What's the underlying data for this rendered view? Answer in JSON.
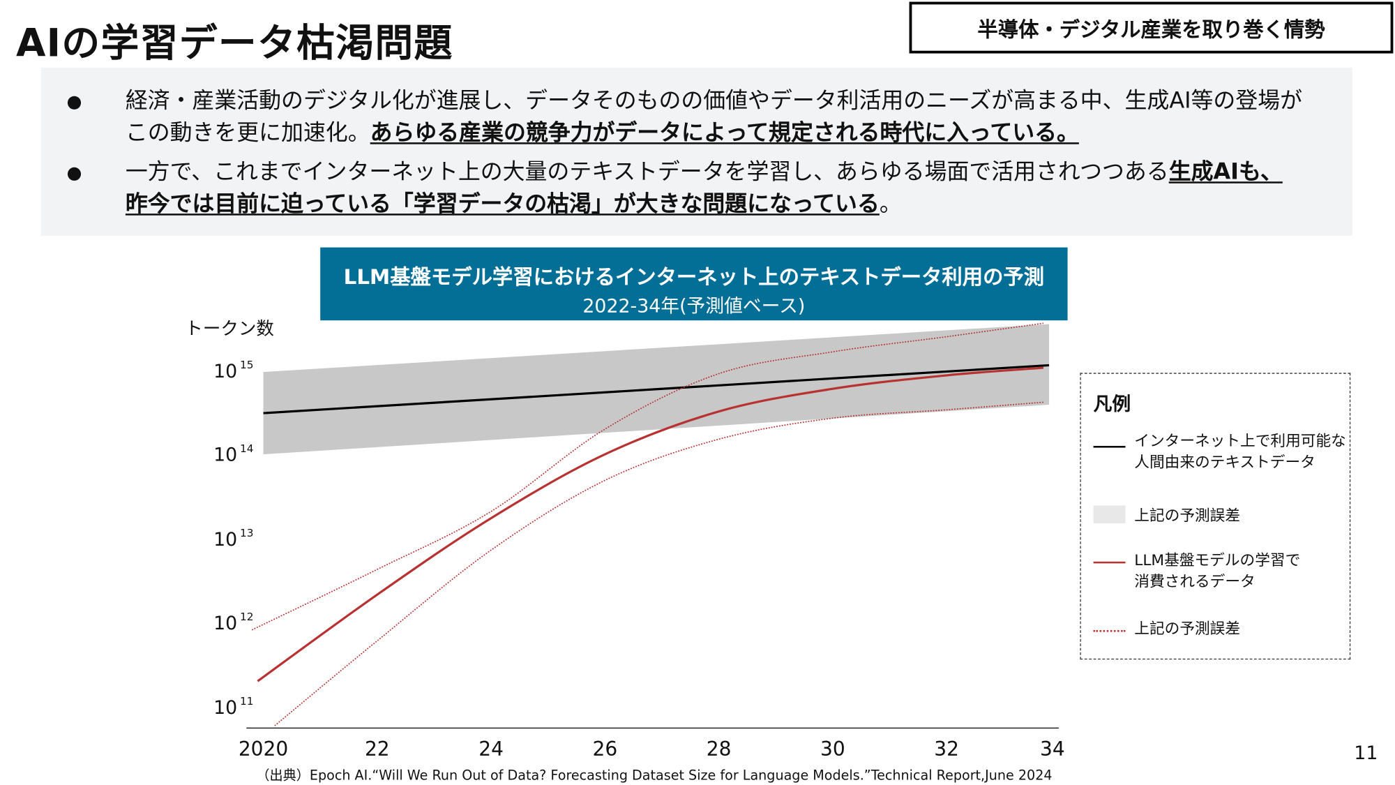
{
  "page": {
    "title": "AIの学習データ枯渇問題",
    "section_tag": "半導体・デジタル産業を取り巻く情勢",
    "page_number": "11"
  },
  "bullets": [
    {
      "lines": [
        [
          {
            "text": "経済・産業活動のデジタル化が進展し、データそのものの価値やデータ利活用のニーズが高まる中、生成AI等の登場が",
            "em": false
          }
        ],
        [
          {
            "text": "この動きを更に加速化。",
            "em": false
          },
          {
            "text": "あらゆる産業の競争力がデータによって規定される時代に入っている。",
            "em": true
          }
        ]
      ]
    },
    {
      "lines": [
        [
          {
            "text": "一方で、これまでインターネット上の大量のテキストデータを学習し、あらゆる場面で活用されつつある",
            "em": false
          },
          {
            "text": "生成AIも、",
            "em": true
          }
        ],
        [
          {
            "text": "昨今では目前に迫っている「学習データの枯渇」が大きな問題になっている",
            "em": true
          },
          {
            "text": "。",
            "em": false
          }
        ]
      ]
    }
  ],
  "chart_data": {
    "type": "line",
    "title": "LLM基盤モデル学習におけるインターネット上のテキストデータ利用の予測",
    "subtitle": "2022-34年(予測値ベース)",
    "ylabel": "トークン数",
    "xlabel": "",
    "yscale": "log",
    "ylim": [
      50000000000.0,
      4000000000000000.0
    ],
    "xlim": [
      2020,
      2034
    ],
    "y_ticks": [
      {
        "base": "10",
        "exp": "15"
      },
      {
        "base": "10",
        "exp": "14"
      },
      {
        "base": "10",
        "exp": "13"
      },
      {
        "base": "10",
        "exp": "12"
      },
      {
        "base": "10",
        "exp": "11"
      }
    ],
    "x_ticks": [
      "2020",
      "22",
      "24",
      "26",
      "28",
      "30",
      "32",
      "34"
    ],
    "x_tick_values": [
      2020,
      2022,
      2024,
      2026,
      2028,
      2030,
      2032,
      2034
    ],
    "grid": false,
    "legend_position": "right",
    "colors": {
      "human_data": "#000000",
      "band": "#c8c8c8",
      "llm": "#b83232",
      "llm_band": "#b83232",
      "title_bg": "#046f96"
    },
    "series": [
      {
        "name": "インターネット上で利用可能な人間由来のテキストデータ",
        "style": "solid-black",
        "x": [
          2020,
          2033.8
        ],
        "log10_y": [
          14.5,
          15.07
        ]
      },
      {
        "name": "上記の予測誤差",
        "style": "band-gray",
        "x": [
          2020,
          2033.8
        ],
        "log10_upper": [
          14.99,
          15.56
        ],
        "log10_lower": [
          14.01,
          14.6
        ]
      },
      {
        "name": "LLM基盤モデルの学習で消費されるデータ",
        "style": "solid-red",
        "x": [
          2019.9,
          2022,
          2024,
          2026,
          2028,
          2030,
          2032,
          2033.7
        ],
        "log10_y": [
          11.31,
          12.34,
          13.25,
          14.01,
          14.52,
          14.79,
          14.95,
          15.04
        ]
      },
      {
        "name": "上記の予測誤差",
        "style": "dotted-red-upper",
        "x": [
          2019.8,
          2022,
          2024,
          2026,
          2028,
          2030,
          2032,
          2033.7
        ],
        "log10_y": [
          11.92,
          12.64,
          13.33,
          14.31,
          14.97,
          15.23,
          15.41,
          15.57
        ]
      },
      {
        "name": "上記の予測誤差",
        "style": "dotted-red-lower",
        "x": [
          2020.2,
          2022,
          2024,
          2026,
          2028,
          2030,
          2032,
          2033.7
        ],
        "log10_y": [
          10.78,
          11.79,
          12.87,
          13.7,
          14.19,
          14.44,
          14.54,
          14.63
        ]
      }
    ]
  },
  "legend": {
    "title": "凡例",
    "items": [
      {
        "label1": "インターネット上で利用可能な",
        "label2": "人間由来のテキストデータ"
      },
      {
        "label1": "上記の予測誤差",
        "label2": ""
      },
      {
        "label1": "LLM基盤モデルの学習で",
        "label2": "消費されるデータ"
      },
      {
        "label1": "上記の予測誤差",
        "label2": ""
      }
    ]
  },
  "source": "（出典）Epoch AI.“Will We Run Out of Data? Forecasting Dataset Size for Language Models.”Technical Report,June 2024"
}
